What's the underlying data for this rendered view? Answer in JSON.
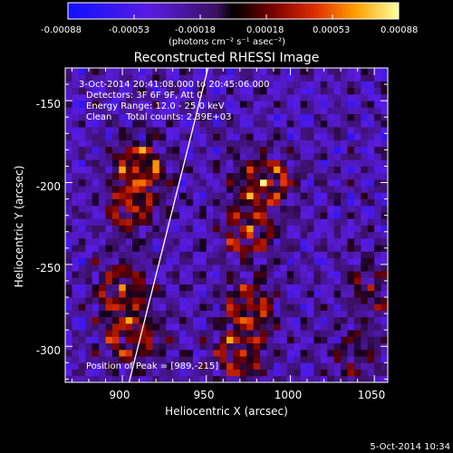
{
  "colorbar": {
    "tick_labels": [
      "-0.00088",
      "-0.00053",
      "-0.00018",
      "0.00018",
      "0.00053",
      "0.00088"
    ],
    "unit_label": "(photons cm⁻² s⁻¹ asec⁻²)",
    "range": [
      -0.00088,
      0.00088
    ]
  },
  "chart_data": {
    "type": "heatmap",
    "title": "Reconstructed RHESSI Image",
    "xlabel": "Heliocentric X (arcsec)",
    "ylabel": "Heliocentric Y (arcsec)",
    "xlim": [
      866,
      1058
    ],
    "ylim": [
      -322,
      -130
    ],
    "x_ticks": [
      900,
      950,
      1000,
      1050
    ],
    "y_ticks": [
      -150,
      -200,
      -250,
      -300
    ],
    "annotations": [
      "3-Oct-2014 20:41:08.000 to 20:45:06.000",
      "Detectors: 3F 6F 9F, Att 0",
      "Energy Range: 12.0 - 25.0 keV",
      "Clean     Total counts: 2.39E+03"
    ],
    "peak_label": "Position of Peak = [989,-215]",
    "peak": [
      989,
      -215
    ],
    "limb_line": [
      [
        904,
        -322
      ],
      [
        951,
        -130
      ]
    ],
    "sources": [
      {
        "x": 910,
        "y": -190,
        "level": 0.95
      },
      {
        "x": 905,
        "y": -215,
        "level": 0.85
      },
      {
        "x": 985,
        "y": -200,
        "level": 1.0
      },
      {
        "x": 975,
        "y": -230,
        "level": 0.8
      },
      {
        "x": 900,
        "y": -265,
        "level": 0.85
      },
      {
        "x": 905,
        "y": -295,
        "level": 0.9
      },
      {
        "x": 975,
        "y": -275,
        "level": 0.9
      },
      {
        "x": 970,
        "y": -305,
        "level": 0.85
      },
      {
        "x": 1050,
        "y": -265,
        "level": 0.55
      },
      {
        "x": 1040,
        "y": -305,
        "level": 0.5
      }
    ]
  },
  "footer": {
    "timestamp": "5-Oct-2014 10:34"
  }
}
